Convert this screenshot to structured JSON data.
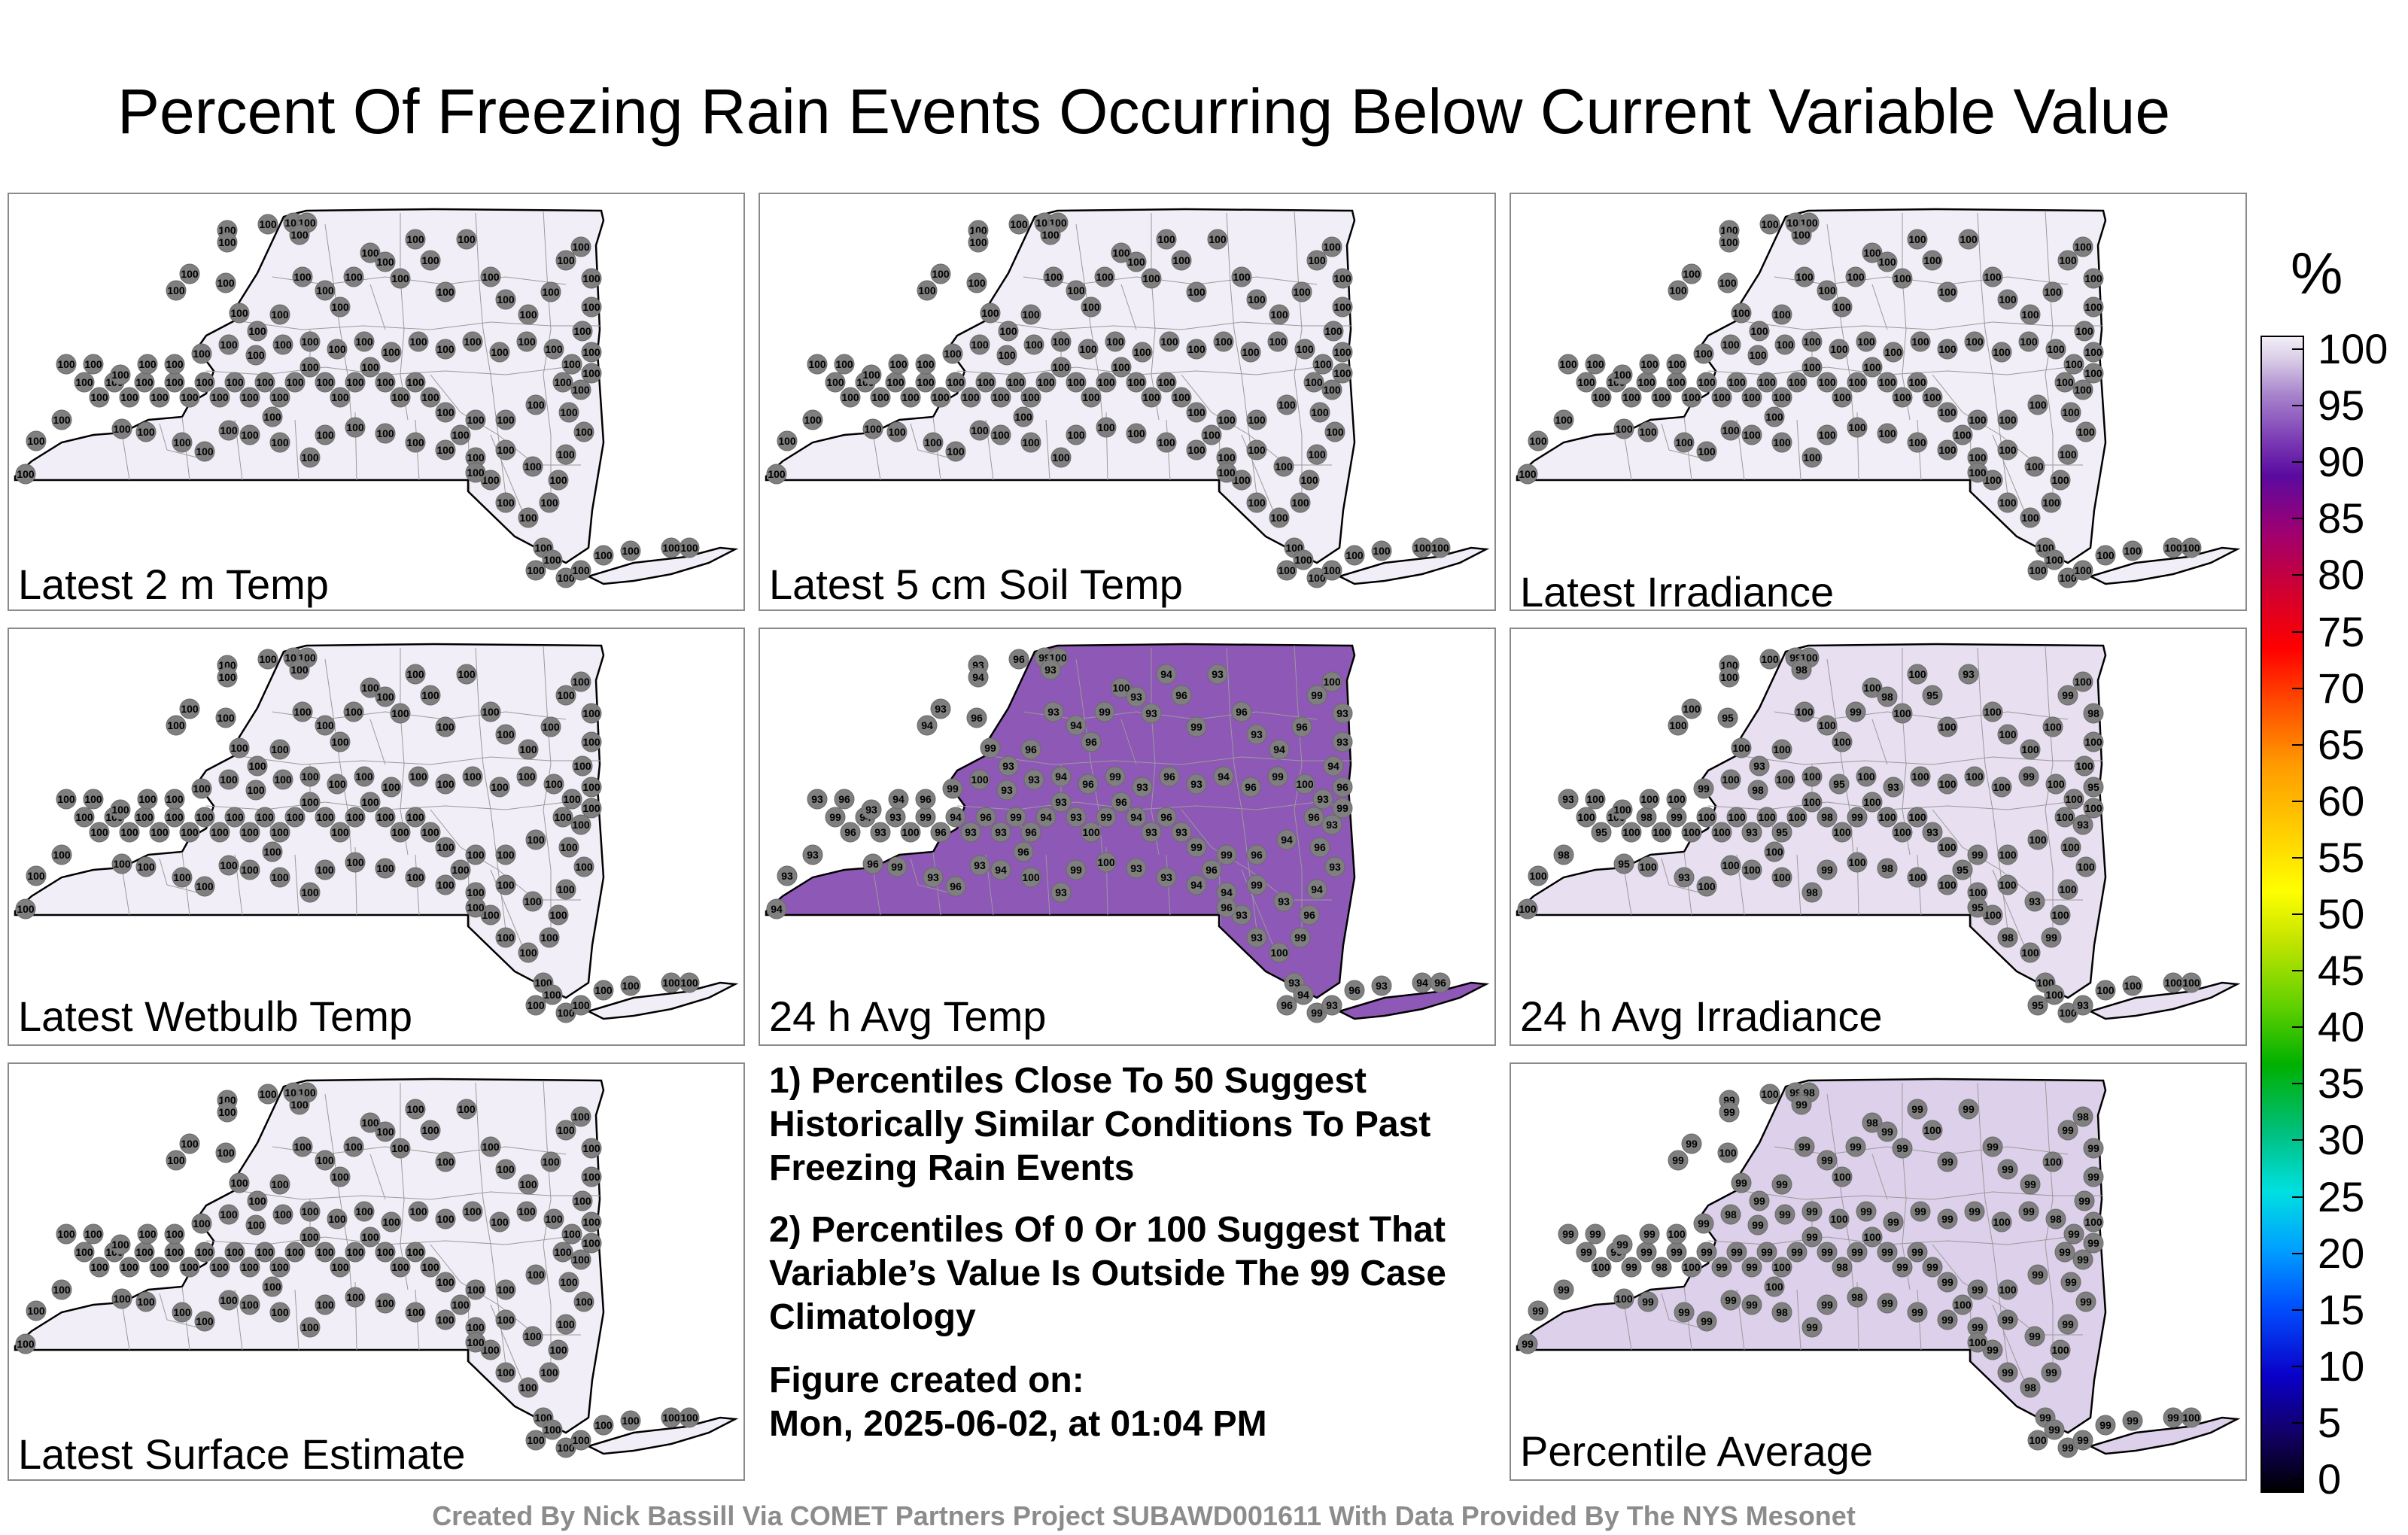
{
  "title": "Percent Of Freezing Rain Events Occurring Below Current Variable Value",
  "panels": [
    {
      "label": "Latest 2 m Temp",
      "shade": "#f2eef7",
      "values": [
        100
      ]
    },
    {
      "label": "Latest 5 cm Soil Temp",
      "shade": "#f2eef7",
      "values": [
        100
      ]
    },
    {
      "label": "Latest Irradiance",
      "shade": "#f2eef7",
      "values": [
        100
      ]
    },
    {
      "label": "Latest Wetbulb Temp",
      "shade": "#f2eef7",
      "values": [
        100
      ]
    },
    {
      "label": "24 h Avg Temp",
      "shade": "#8e58b6",
      "values": [
        93,
        94,
        96,
        99,
        100,
        93,
        93,
        94,
        96,
        99,
        93,
        96
      ]
    },
    {
      "label": "24 h Avg Irradiance",
      "shade": "#e8dff0",
      "values": [
        100,
        100,
        100,
        99,
        100,
        98,
        100,
        100,
        95,
        100,
        93,
        100
      ]
    },
    {
      "label": "Latest Surface Estimate",
      "shade": "#f2eef7",
      "values": [
        100
      ]
    },
    {
      "label": "Percentile Average",
      "shade": "#ddd0ea",
      "values": [
        99,
        99,
        100,
        99,
        98,
        99,
        99,
        99,
        100,
        99,
        99,
        99
      ]
    }
  ],
  "notes": {
    "note1": "1) Percentiles Close To 50 Suggest Historically Similar Conditions To Past Freezing Rain Events",
    "note2": "2) Percentiles Of 0 Or 100 Suggest That Variable’s Value Is Outside The 99 Case Climatology",
    "created_label": "Figure created on:",
    "created_value": "Mon, 2025-06-02, at 01:04 PM"
  },
  "colorbar": {
    "unit": "%",
    "ticks": [
      "100",
      "95",
      "90",
      "85",
      "80",
      "75",
      "70",
      "65",
      "60",
      "55",
      "50",
      "45",
      "40",
      "35",
      "30",
      "25",
      "20",
      "15",
      "10",
      "5",
      "0"
    ]
  },
  "credit": "Created By Nick Bassill Via COMET Partners Project SUBAWD001611 With Data Provided By The NYS Mesonet"
}
